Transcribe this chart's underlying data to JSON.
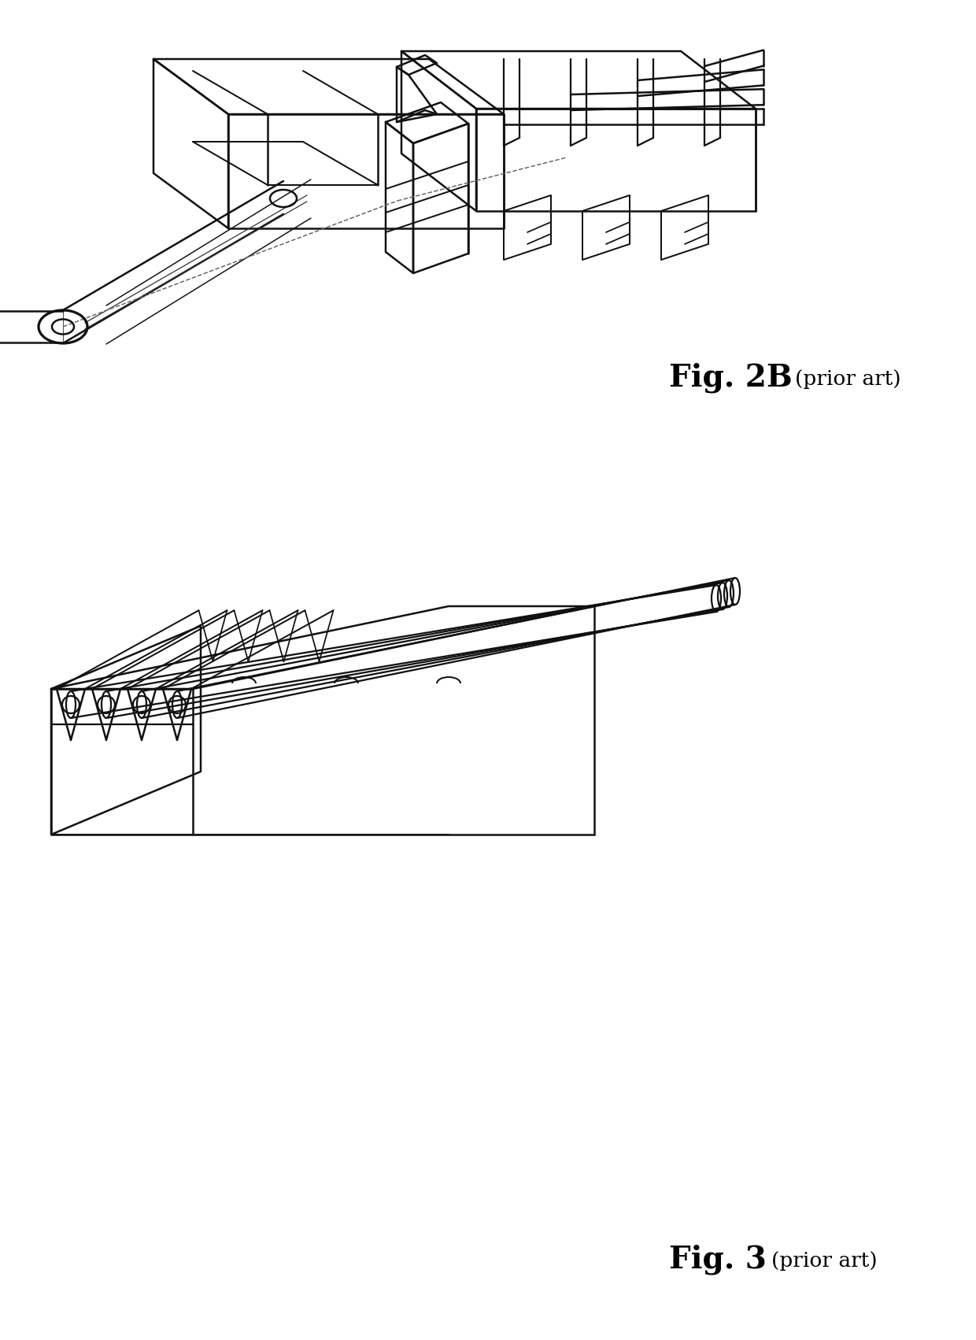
{
  "fig2b_label": "Fig. 2B",
  "fig2b_sublabel": "(prior art)",
  "fig3_label": "Fig. 3",
  "fig3_sublabel": "(prior art)",
  "background_color": "#ffffff",
  "line_color": "#111111",
  "line_width": 1.8
}
